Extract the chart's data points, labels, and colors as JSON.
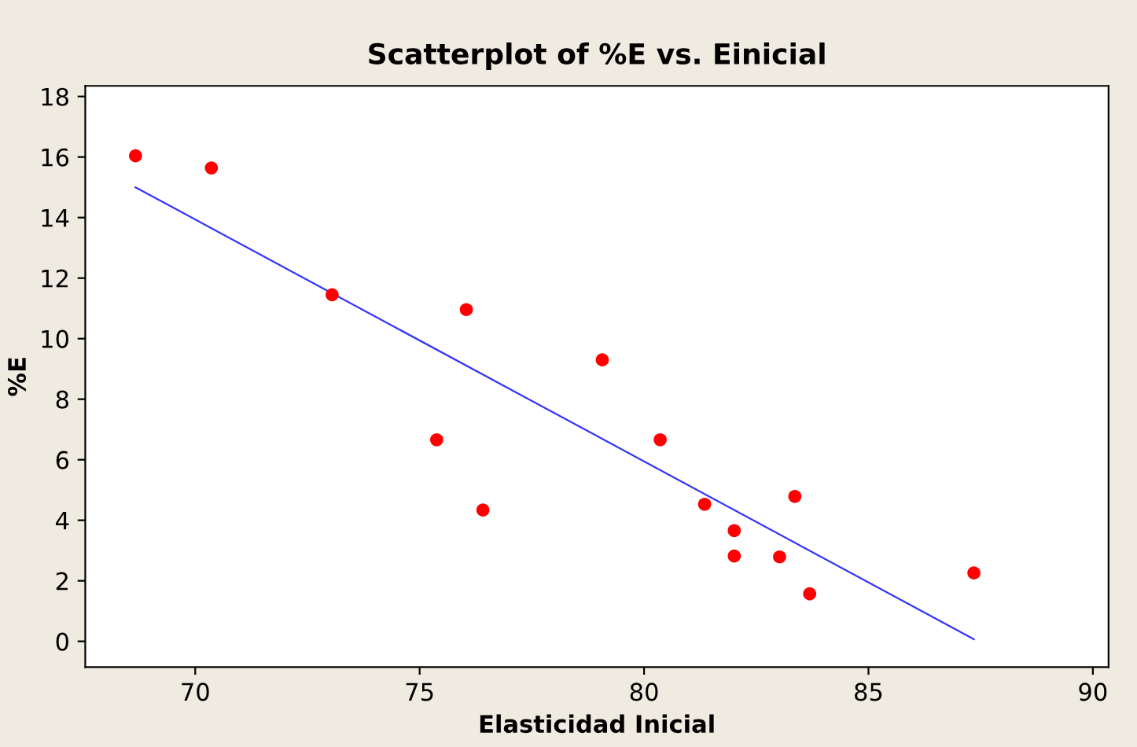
{
  "chart_data": {
    "type": "scatter",
    "title": "Scatterplot of %E vs. Einicial",
    "xlabel": "Elasticidad Inicial",
    "ylabel": "%E",
    "xlim": [
      67.55,
      90.35
    ],
    "ylim": [
      -0.85,
      18.35
    ],
    "xticks": [
      70,
      75,
      80,
      85,
      90
    ],
    "yticks": [
      0,
      2,
      4,
      6,
      8,
      10,
      12,
      14,
      16,
      18
    ],
    "grid": false,
    "legend": false,
    "marker": "circle",
    "series": [
      {
        "color": "#ff0000",
        "x": [
          68.67,
          70.36,
          73.05,
          76.04,
          75.38,
          76.41,
          79.07,
          80.36,
          81.35,
          82.01,
          82.01,
          83.02,
          83.36,
          83.69,
          87.35
        ],
        "values": [
          16.04,
          15.64,
          11.45,
          10.96,
          6.66,
          4.34,
          9.3,
          6.66,
          4.53,
          3.66,
          2.82,
          2.79,
          4.79,
          1.57,
          2.26
        ]
      },
      {
        "type": "line",
        "color": "#3333ff",
        "line_style": "solid",
        "marker": "none",
        "x": [
          68.67,
          87.35
        ],
        "values": [
          15.0,
          0.07
        ]
      }
    ]
  }
}
